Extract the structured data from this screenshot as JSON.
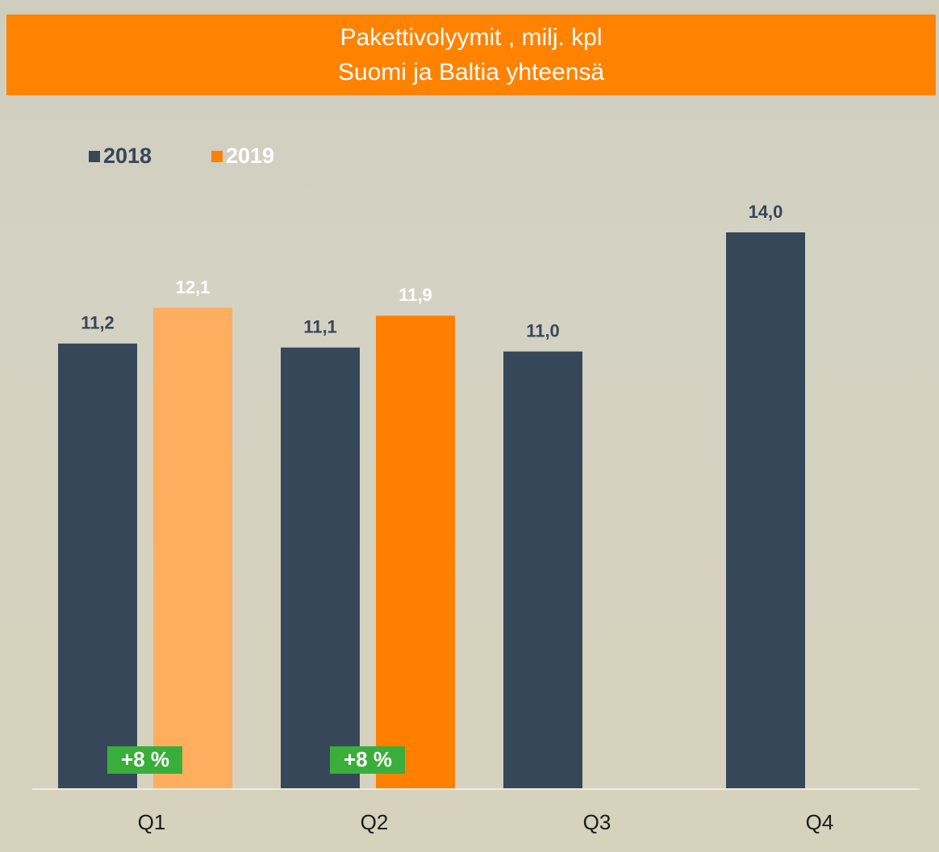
{
  "chart_data": {
    "type": "bar",
    "title": "Pakettivolyymit , milj. kpl",
    "subtitle": "Suomi ja Baltia yhteensä",
    "categories": [
      "Q1",
      "Q2",
      "Q3",
      "Q4"
    ],
    "series": [
      {
        "name": "2018",
        "color": "#37475a",
        "label_color": "#37475a",
        "values": [
          11.2,
          11.1,
          11.0,
          14.0
        ],
        "value_labels": [
          "11,2",
          "11,1",
          "11,0",
          "14,0"
        ]
      },
      {
        "name": "2019",
        "color": "#ff8000",
        "label_color": "#ffffff",
        "point_colors": [
          "#ffad5e",
          "#ff8000",
          null,
          null
        ],
        "values": [
          12.1,
          11.9,
          null,
          null
        ],
        "value_labels": [
          "12,1",
          "11,9",
          null,
          null
        ]
      }
    ],
    "annotations": [
      "+8 %",
      "+8 %"
    ],
    "annotation_color": "#3aae3a",
    "ylim": [
      0,
      14
    ],
    "legend": "top-left"
  }
}
